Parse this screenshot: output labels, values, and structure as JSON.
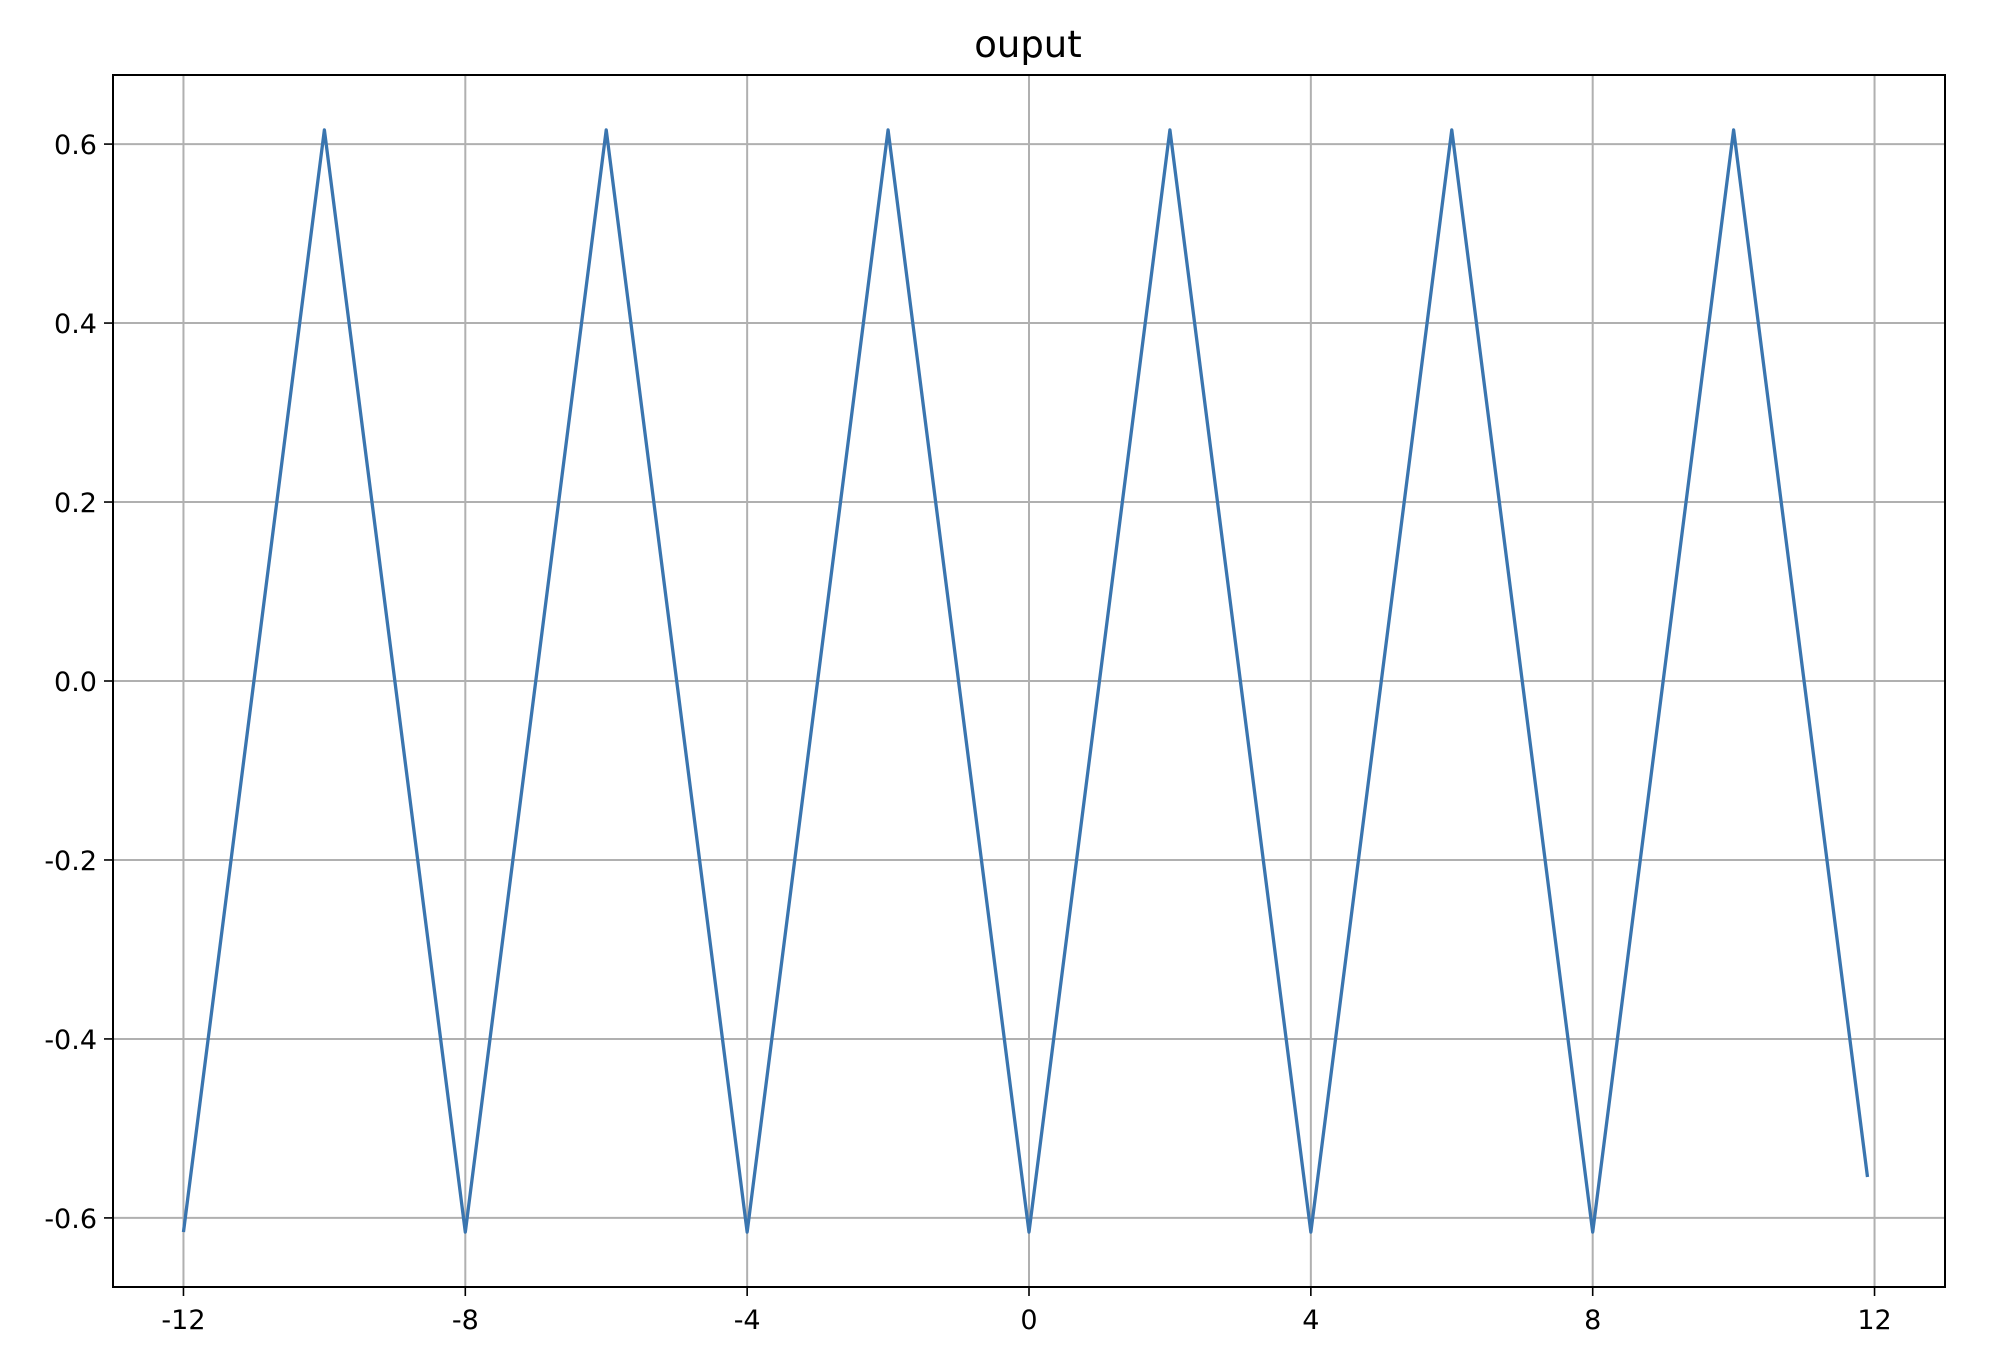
{
  "chart_data": {
    "type": "line",
    "title": "ouput",
    "xlabel": "",
    "ylabel": "",
    "xlim": [
      -13.0,
      13.0
    ],
    "ylim": [
      -0.6772,
      0.6772
    ],
    "grid": true,
    "x_ticks": [
      -12,
      -8,
      -4,
      0,
      4,
      8,
      12
    ],
    "x_tick_labels": [
      "-12",
      "-8",
      "-4",
      "0",
      "4",
      "8",
      "12"
    ],
    "y_ticks": [
      -0.6,
      -0.4,
      -0.2,
      0.0,
      0.2,
      0.4,
      0.6
    ],
    "y_tick_labels": [
      "-0.6",
      "-0.4",
      "-0.2",
      "0.0",
      "0.2",
      "0.4",
      "0.6"
    ],
    "series": [
      {
        "name": "ouput",
        "color": "#3a75af",
        "x": [
          -12,
          -10,
          -8,
          -6,
          -4,
          -2,
          0,
          2,
          4,
          6,
          8,
          10,
          11.9
        ],
        "y": [
          -0.6158,
          0.6158,
          -0.6158,
          0.6158,
          -0.6158,
          0.6158,
          -0.6158,
          0.6158,
          -0.6158,
          0.6158,
          -0.6158,
          0.6158,
          -0.5543
        ]
      }
    ]
  }
}
